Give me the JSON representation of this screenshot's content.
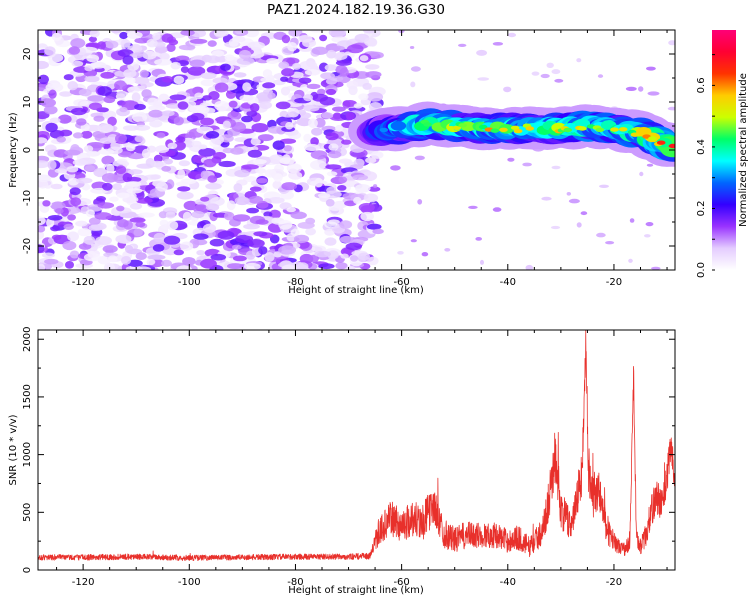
{
  "title": "PAZ1.2024.182.19.36.G30",
  "chart_data": [
    {
      "type": "heatmap",
      "xlabel": "Height of straight line (km)",
      "ylabel": "Frequency (Hz)",
      "xlim": [
        -128.5,
        -8.5
      ],
      "ylim": [
        -25,
        25
      ],
      "xticks": [
        "-120",
        "-100",
        "-80",
        "-60",
        "-40",
        "-20"
      ],
      "xtick_values": [
        -120,
        -100,
        -80,
        -60,
        -40,
        -20
      ],
      "yticks": [
        "20",
        "10",
        "0",
        "-10",
        "-20"
      ],
      "ytick_values": [
        20,
        10,
        0,
        -10,
        -20
      ],
      "colorbar": {
        "label": "Normalized spectral amplitude",
        "range": [
          0.0,
          0.78
        ],
        "ticks": [
          "0.0",
          "0.2",
          "0.4",
          "0.6"
        ],
        "tick_values": [
          0.0,
          0.2,
          0.4,
          0.6
        ],
        "colors": [
          "#ffffff",
          "#e4ccff",
          "#9933ff",
          "#3300ff",
          "#0066ff",
          "#00ffff",
          "#00ff66",
          "#ccff00",
          "#ffcc00",
          "#ff3300",
          "#ff0033",
          "#ff0077"
        ]
      },
      "noise_region_x": [
        -128.5,
        -65
      ],
      "ridge": {
        "x": [
          -65,
          -60,
          -55,
          -50,
          -45,
          -40,
          -35,
          -30,
          -25,
          -20,
          -15,
          -10,
          -8.5
        ],
        "frequency": [
          4,
          4.5,
          5.5,
          5,
          4.5,
          4.5,
          4.5,
          4.5,
          5,
          4.5,
          3.5,
          1,
          0.5
        ],
        "amplitude": [
          0.35,
          0.45,
          0.55,
          0.5,
          0.5,
          0.5,
          0.5,
          0.5,
          0.55,
          0.5,
          0.55,
          0.6,
          0.6
        ]
      }
    },
    {
      "type": "line",
      "xlabel": "Height of straight line (km)",
      "ylabel": "SNR (10 * v/v)",
      "xlim": [
        -128.5,
        -8.5
      ],
      "ylim": [
        0,
        2080
      ],
      "xticks": [
        "-120",
        "-100",
        "-80",
        "-60",
        "-40",
        "-20"
      ],
      "xtick_values": [
        -120,
        -100,
        -80,
        -60,
        -40,
        -20
      ],
      "yticks": [
        "0",
        "500",
        "1000",
        "1500",
        "2000"
      ],
      "ytick_values": [
        0,
        500,
        1000,
        1500,
        2000
      ],
      "color": "#e8302b",
      "series": [
        {
          "x": [
            -128.5,
            -120,
            -110,
            -100,
            -90,
            -80,
            -70,
            -66,
            -64,
            -62,
            -60,
            -58,
            -56,
            -54,
            -52,
            -50,
            -48,
            -45,
            -42,
            -40,
            -38,
            -36,
            -34,
            -33,
            -32,
            -31,
            -30,
            -29,
            -28,
            -27,
            -26,
            -25.3,
            -24.8,
            -24,
            -23,
            -22,
            -21,
            -20,
            -19,
            -18,
            -17,
            -16.3,
            -15.8,
            -15,
            -14,
            -13,
            -12,
            -11,
            -10,
            -9.5,
            -9,
            -8.5
          ],
          "y": [
            110,
            110,
            115,
            105,
            110,
            115,
            115,
            120,
            350,
            450,
            380,
            450,
            420,
            560,
            320,
            260,
            300,
            300,
            300,
            250,
            280,
            200,
            300,
            420,
            700,
            1000,
            520,
            450,
            380,
            600,
            850,
            2000,
            900,
            650,
            700,
            500,
            320,
            250,
            200,
            180,
            230,
            1700,
            320,
            200,
            300,
            500,
            650,
            560,
            780,
            1050,
            1000,
            700
          ],
          "jitter": [
            25,
            25,
            25,
            25,
            25,
            25,
            25,
            30,
            120,
            150,
            140,
            160,
            170,
            160,
            130,
            110,
            120,
            110,
            110,
            100,
            110,
            90,
            110,
            140,
            200,
            250,
            170,
            150,
            140,
            170,
            220,
            150,
            220,
            200,
            200,
            170,
            120,
            90,
            60,
            60,
            80,
            120,
            100,
            70,
            100,
            140,
            160,
            140,
            170,
            160,
            150,
            120
          ]
        }
      ]
    }
  ]
}
